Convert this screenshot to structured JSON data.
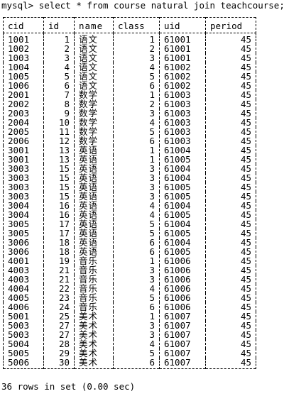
{
  "terminal": {
    "command": "mysql> select * from course natural join teachcourse;",
    "footer": "36 rows in set (0.00 sec)"
  },
  "table": {
    "columns": [
      "cid",
      "id",
      "name",
      "class",
      "uid",
      "period"
    ],
    "rows": [
      [
        "1001",
        "1",
        "语文",
        "1",
        "61001",
        "45"
      ],
      [
        "1002",
        "2",
        "语文",
        "2",
        "61001",
        "45"
      ],
      [
        "1003",
        "3",
        "语文",
        "3",
        "61001",
        "45"
      ],
      [
        "1004",
        "4",
        "语文",
        "4",
        "61002",
        "45"
      ],
      [
        "1005",
        "5",
        "语文",
        "5",
        "61002",
        "45"
      ],
      [
        "1006",
        "6",
        "语文",
        "6",
        "61002",
        "45"
      ],
      [
        "2001",
        "7",
        "数学",
        "1",
        "61003",
        "45"
      ],
      [
        "2002",
        "8",
        "数学",
        "2",
        "61003",
        "45"
      ],
      [
        "2003",
        "9",
        "数学",
        "3",
        "61003",
        "45"
      ],
      [
        "2004",
        "10",
        "数学",
        "4",
        "61003",
        "45"
      ],
      [
        "2005",
        "11",
        "数学",
        "5",
        "61003",
        "45"
      ],
      [
        "2006",
        "12",
        "数学",
        "6",
        "61003",
        "45"
      ],
      [
        "3001",
        "13",
        "英语",
        "1",
        "61004",
        "45"
      ],
      [
        "3001",
        "13",
        "英语",
        "1",
        "61005",
        "45"
      ],
      [
        "3003",
        "15",
        "英语",
        "3",
        "61004",
        "45"
      ],
      [
        "3003",
        "15",
        "英语",
        "3",
        "61004",
        "45"
      ],
      [
        "3003",
        "15",
        "英语",
        "3",
        "61005",
        "45"
      ],
      [
        "3003",
        "15",
        "英语",
        "3",
        "61005",
        "45"
      ],
      [
        "3004",
        "16",
        "英语",
        "4",
        "61004",
        "45"
      ],
      [
        "3004",
        "16",
        "英语",
        "4",
        "61005",
        "45"
      ],
      [
        "3005",
        "17",
        "英语",
        "5",
        "61004",
        "45"
      ],
      [
        "3005",
        "17",
        "英语",
        "5",
        "61005",
        "45"
      ],
      [
        "3006",
        "18",
        "英语",
        "6",
        "61004",
        "45"
      ],
      [
        "3006",
        "18",
        "英语",
        "6",
        "61005",
        "45"
      ],
      [
        "4001",
        "19",
        "音乐",
        "1",
        "61006",
        "45"
      ],
      [
        "4003",
        "21",
        "音乐",
        "3",
        "61006",
        "45"
      ],
      [
        "4003",
        "21",
        "音乐",
        "3",
        "61006",
        "45"
      ],
      [
        "4004",
        "22",
        "音乐",
        "4",
        "61006",
        "45"
      ],
      [
        "4005",
        "23",
        "音乐",
        "5",
        "61006",
        "45"
      ],
      [
        "4006",
        "24",
        "音乐",
        "6",
        "61006",
        "45"
      ],
      [
        "5001",
        "25",
        "美术",
        "1",
        "61007",
        "45"
      ],
      [
        "5003",
        "27",
        "美术",
        "3",
        "61007",
        "45"
      ],
      [
        "5003",
        "27",
        "美术",
        "3",
        "61007",
        "45"
      ],
      [
        "5004",
        "28",
        "美术",
        "4",
        "61007",
        "45"
      ],
      [
        "5005",
        "29",
        "美术",
        "5",
        "61007",
        "45"
      ],
      [
        "5006",
        "30",
        "美术",
        "6",
        "61007",
        "45"
      ]
    ]
  }
}
